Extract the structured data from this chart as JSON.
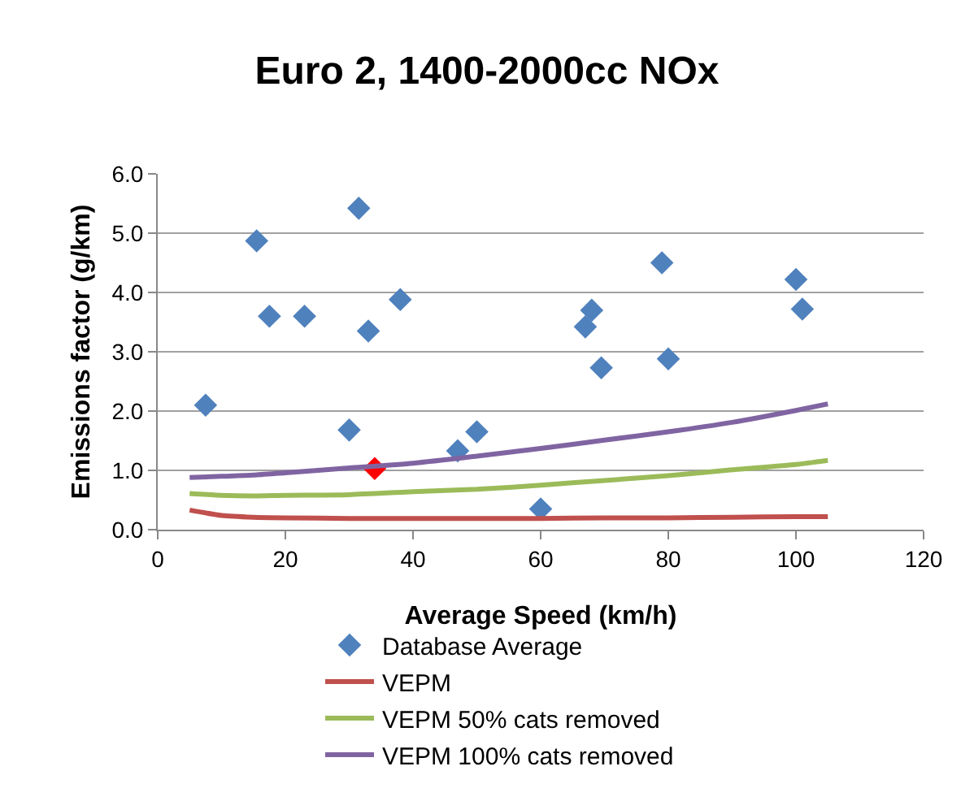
{
  "chart_data": {
    "type": "line",
    "title": "Euro 2, 1400-2000cc NOx",
    "xlabel": "Average Speed (km/h)",
    "ylabel": "Emissions factor (g/km)",
    "xlim": [
      0,
      120
    ],
    "xticks": [
      0,
      20,
      40,
      60,
      80,
      100,
      120
    ],
    "ylim": [
      0,
      6
    ],
    "yticks": [
      {
        "value": 0,
        "label": "0.0"
      },
      {
        "value": 1,
        "label": "1.0"
      },
      {
        "value": 2,
        "label": "2.0"
      },
      {
        "value": 3,
        "label": "3.0"
      },
      {
        "value": 4,
        "label": "4.0"
      },
      {
        "value": 5,
        "label": "5.0"
      },
      {
        "value": 6,
        "label": "6.0"
      }
    ],
    "grid": "y",
    "legend": "bottom",
    "series": [
      {
        "name": "Database Average",
        "type": "scatter",
        "marker": "diamond",
        "color": "#4f81bd",
        "x": [
          7.5,
          15.5,
          17.5,
          23,
          30,
          31.5,
          33,
          34,
          38,
          47,
          50,
          60,
          67,
          68,
          69.5,
          79,
          80,
          100,
          101
        ],
        "values": [
          2.1,
          4.87,
          3.6,
          3.6,
          1.68,
          5.42,
          3.35,
          1.03,
          3.88,
          1.33,
          1.65,
          0.35,
          3.42,
          3.7,
          2.73,
          4.5,
          2.88,
          4.22,
          3.72
        ],
        "colors": [
          null,
          null,
          null,
          null,
          null,
          null,
          null,
          "#ff0000",
          null,
          null,
          null,
          null,
          null,
          null,
          null,
          null,
          null,
          null,
          null
        ]
      },
      {
        "name": "VEPM",
        "color": "#c0504d",
        "x": [
          5,
          10,
          15,
          20,
          30,
          40,
          50,
          60,
          70,
          80,
          90,
          100,
          105
        ],
        "values": [
          0.33,
          0.24,
          0.21,
          0.2,
          0.19,
          0.19,
          0.19,
          0.19,
          0.2,
          0.2,
          0.21,
          0.22,
          0.22
        ]
      },
      {
        "name": "VEPM 50% cats removed",
        "color": "#9bbb59",
        "x": [
          5,
          10,
          15,
          20,
          30,
          40,
          50,
          60,
          70,
          80,
          90,
          100,
          105
        ],
        "values": [
          0.61,
          0.58,
          0.57,
          0.58,
          0.59,
          0.64,
          0.68,
          0.75,
          0.83,
          0.91,
          1.01,
          1.1,
          1.17
        ]
      },
      {
        "name": "VEPM 100% cats removed",
        "color": "#8064a2",
        "x": [
          5,
          10,
          15,
          20,
          30,
          40,
          50,
          60,
          70,
          80,
          90,
          100,
          105
        ],
        "values": [
          0.88,
          0.9,
          0.92,
          0.96,
          1.04,
          1.12,
          1.24,
          1.37,
          1.51,
          1.65,
          1.81,
          2.01,
          2.12
        ]
      }
    ]
  }
}
